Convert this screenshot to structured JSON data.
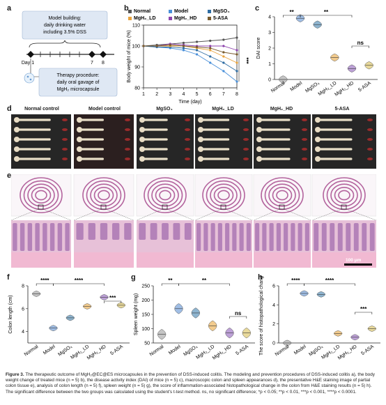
{
  "panels": {
    "a": {
      "letter": "a",
      "model_text": "Model building: daily drinking water including 3.5% DSS",
      "model_lines": [
        "Model building:",
        "daily drinking water",
        "including 3.5% DSS"
      ],
      "day1": "Day 1",
      "day7": "7",
      "day8": "8",
      "therapy_lines": [
        "Therapy procedure:",
        "daily oral gavage of",
        "MgH₂ microcapsule"
      ]
    },
    "b": {
      "letter": "b"
    },
    "c": {
      "letter": "c"
    },
    "d": {
      "letter": "d",
      "labels": [
        "Normal control",
        "Model control",
        "MgSO₄",
        "MgH₂_LD",
        "MgH₂_HD",
        "5-ASA"
      ]
    },
    "e": {
      "letter": "e",
      "scalebar": "100 μm"
    },
    "f": {
      "letter": "f"
    },
    "g": {
      "letter": "g"
    },
    "h": {
      "letter": "h"
    }
  },
  "chart_data": [
    {
      "id": "b",
      "type": "line",
      "xlabel": "Time (day)",
      "ylabel": "Body weight of mice (%)",
      "x": [
        1,
        2,
        3,
        4,
        5,
        6,
        7,
        8
      ],
      "xticks": [
        "1",
        "2",
        "3",
        "4",
        "5",
        "6",
        "7",
        "8"
      ],
      "ylim": [
        80,
        110
      ],
      "yticks": [
        80,
        90,
        100,
        110
      ],
      "series": [
        {
          "name": "Normal",
          "color": "#555555",
          "values": [
            100,
            100.5,
            101,
            101.5,
            102,
            102.5,
            103,
            104
          ]
        },
        {
          "name": "Model",
          "color": "#4a90d9",
          "values": [
            100,
            99.5,
            99,
            98,
            96,
            92,
            88,
            83
          ]
        },
        {
          "name": "MgSO₄",
          "color": "#2e6da4",
          "values": [
            100,
            99.5,
            99.5,
            99,
            98,
            95,
            92,
            88
          ]
        },
        {
          "name": "MgH₂_LD",
          "color": "#e8a33d",
          "values": [
            100,
            100,
            100,
            100,
            99,
            98,
            95,
            92
          ]
        },
        {
          "name": "MgH₂_HD",
          "color": "#8e44ad",
          "values": [
            100,
            100,
            101,
            100.5,
            100,
            100,
            100,
            98
          ]
        },
        {
          "name": "5-ASA",
          "color": "#7a5c2e",
          "values": [
            100,
            100,
            100.5,
            100,
            99.5,
            99,
            97,
            96
          ]
        }
      ],
      "annotation": "***"
    },
    {
      "id": "c",
      "type": "violin",
      "ylabel": "DAI score",
      "ylim": [
        0,
        4
      ],
      "yticks": [
        0,
        1,
        2,
        3,
        4
      ],
      "categories": [
        "Normal",
        "Model",
        "MgSO₄",
        "MgH₂_LD",
        "MgH₂_HD",
        "5-ASA"
      ],
      "values": [
        0,
        3.9,
        3.5,
        1.4,
        0.7,
        0.9
      ],
      "colors": [
        "#bbbbbb",
        "#8fb3e0",
        "#7aa7c7",
        "#f0c27a",
        "#b190d0",
        "#e4d28a"
      ],
      "annotations": [
        "**",
        "**",
        "ns"
      ]
    },
    {
      "id": "f",
      "type": "violin",
      "ylabel": "Colon length (cm)",
      "ylim": [
        3,
        8
      ],
      "yticks": [
        4,
        6,
        8
      ],
      "categories": [
        "Normal",
        "Model",
        "MgSO₄",
        "MgH₂_LD",
        "MgH₂_HD",
        "5-ASA"
      ],
      "values": [
        7.3,
        4.3,
        5.2,
        6.2,
        7.0,
        6.3
      ],
      "colors": [
        "#bbbbbb",
        "#8fb3e0",
        "#7aa7c7",
        "#f0c27a",
        "#b190d0",
        "#e4d28a"
      ],
      "annotations": [
        "****",
        "****",
        "***"
      ]
    },
    {
      "id": "g",
      "type": "violin",
      "ylabel": "Spleen weight (mg)",
      "ylim": [
        50,
        250
      ],
      "yticks": [
        50,
        100,
        150,
        200,
        250
      ],
      "categories": [
        "Normal",
        "Model",
        "MgSO₄",
        "MgH₂_LD",
        "MgH₂_HD",
        "5-ASA"
      ],
      "values": [
        80,
        170,
        155,
        110,
        85,
        85
      ],
      "colors": [
        "#bbbbbb",
        "#8fb3e0",
        "#7aa7c7",
        "#f0c27a",
        "#b190d0",
        "#e4d28a"
      ],
      "annotations": [
        "**",
        "**",
        "ns"
      ]
    },
    {
      "id": "h",
      "type": "violin",
      "ylabel": "The score of histopathological change",
      "ylim": [
        0,
        6
      ],
      "yticks": [
        0,
        2,
        4,
        6
      ],
      "categories": [
        "Normal",
        "Model",
        "MgSO₄",
        "MgH₂_LD",
        "MgH₂_HD",
        "5-ASA"
      ],
      "values": [
        0,
        5.2,
        5.1,
        1.0,
        0.6,
        1.5
      ],
      "colors": [
        "#bbbbbb",
        "#8fb3e0",
        "#7aa7c7",
        "#f0c27a",
        "#b190d0",
        "#e4d28a"
      ],
      "annotations": [
        "****",
        "****",
        "***"
      ]
    }
  ],
  "caption": {
    "figure": "Figure 3.",
    "text": "The therapeutic outcome of MgH₂@EC@ES microcapsules in the prevention of DSS-induced colitis. The modeling and prevention procedures of DSS-induced colitis a), the body weight change of treated mice (n = 5) b), the disease activity index (DAI) of mice (n = 5) c), macroscopic colon and spleen appearances d), the presentative H&E staining image of partial colon tissue e), analysis of colon length (n = 5) f), spleen weight (n = 5) g), the score of inflammation-associated histopathological change in the colon from H&E staining results (n = 5) h). The significant difference between the two groups was calculated using the student's t-test method. ns, no significant difference; *p < 0.05; **p < 0.01, ***p < 0.001, ****p < 0.0001."
  }
}
